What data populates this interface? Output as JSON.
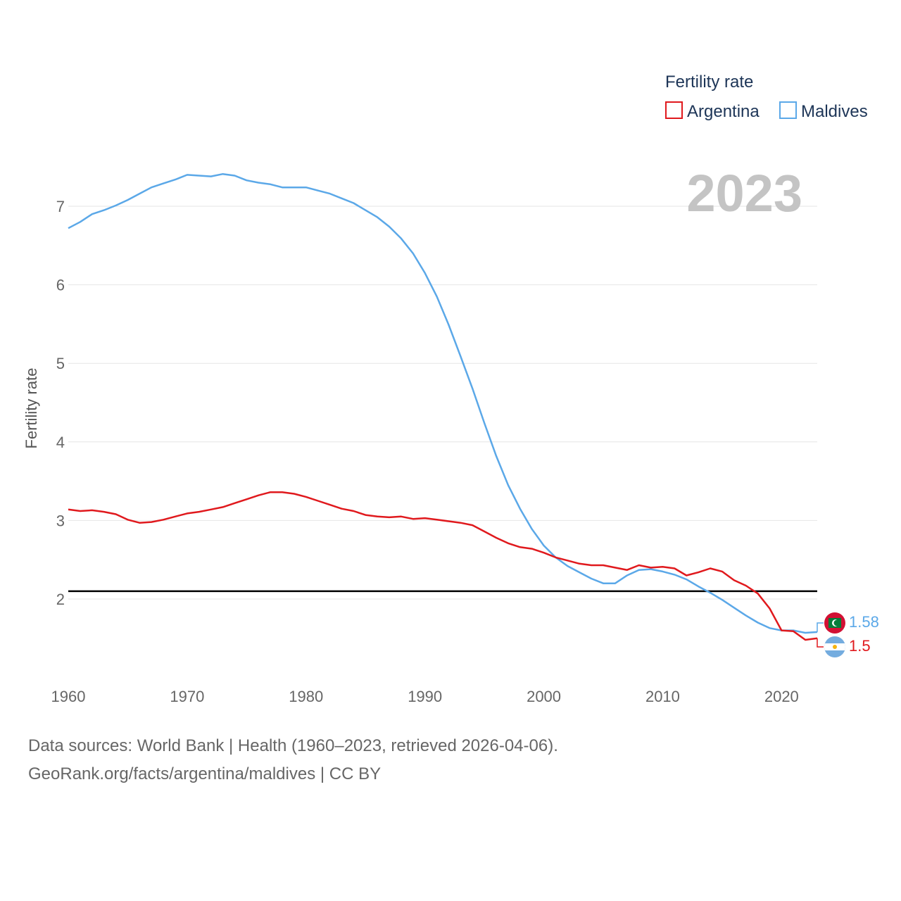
{
  "chart_data": {
    "type": "line",
    "title": "Fertility rate",
    "ylabel": "Fertility rate",
    "xlabel": "",
    "highlight_year": "2023",
    "x_ticks": [
      1960,
      1970,
      1980,
      1990,
      2000,
      2010,
      2020
    ],
    "y_ticks": [
      2,
      3,
      4,
      5,
      6,
      7
    ],
    "xlim": [
      1960,
      2023
    ],
    "ylim": [
      1.2,
      7.6
    ],
    "reference_line": 2.1,
    "grid": true,
    "legend_position": "top-right",
    "x": [
      1960,
      1961,
      1962,
      1963,
      1964,
      1965,
      1966,
      1967,
      1968,
      1969,
      1970,
      1971,
      1972,
      1973,
      1974,
      1975,
      1976,
      1977,
      1978,
      1979,
      1980,
      1981,
      1982,
      1983,
      1984,
      1985,
      1986,
      1987,
      1988,
      1989,
      1990,
      1991,
      1992,
      1993,
      1994,
      1995,
      1996,
      1997,
      1998,
      1999,
      2000,
      2001,
      2002,
      2003,
      2004,
      2005,
      2006,
      2007,
      2008,
      2009,
      2010,
      2011,
      2012,
      2013,
      2014,
      2015,
      2016,
      2017,
      2018,
      2019,
      2020,
      2021,
      2022,
      2023
    ],
    "series": [
      {
        "name": "Argentina",
        "color": "#e0191d",
        "end_label": "1.5",
        "values": [
          3.14,
          3.12,
          3.13,
          3.11,
          3.08,
          3.01,
          2.97,
          2.98,
          3.01,
          3.05,
          3.09,
          3.11,
          3.14,
          3.17,
          3.22,
          3.27,
          3.32,
          3.36,
          3.36,
          3.34,
          3.3,
          3.25,
          3.2,
          3.15,
          3.12,
          3.07,
          3.05,
          3.04,
          3.05,
          3.02,
          3.03,
          3.01,
          2.99,
          2.97,
          2.94,
          2.86,
          2.78,
          2.71,
          2.66,
          2.64,
          2.59,
          2.53,
          2.49,
          2.45,
          2.43,
          2.43,
          2.4,
          2.37,
          2.43,
          2.4,
          2.41,
          2.39,
          2.3,
          2.34,
          2.39,
          2.35,
          2.24,
          2.17,
          2.07,
          1.88,
          1.6,
          1.59,
          1.48,
          1.5
        ]
      },
      {
        "name": "Maldives",
        "color": "#5ba8e8",
        "end_label": "1.58",
        "values": [
          6.72,
          6.8,
          6.9,
          6.95,
          7.01,
          7.08,
          7.16,
          7.24,
          7.29,
          7.34,
          7.4,
          7.39,
          7.38,
          7.41,
          7.39,
          7.33,
          7.3,
          7.28,
          7.24,
          7.24,
          7.24,
          7.2,
          7.16,
          7.1,
          7.04,
          6.95,
          6.86,
          6.74,
          6.59,
          6.4,
          6.15,
          5.85,
          5.49,
          5.09,
          4.68,
          4.24,
          3.82,
          3.45,
          3.15,
          2.89,
          2.68,
          2.53,
          2.42,
          2.34,
          2.26,
          2.2,
          2.2,
          2.3,
          2.37,
          2.38,
          2.35,
          2.31,
          2.25,
          2.16,
          2.08,
          1.99,
          1.89,
          1.79,
          1.7,
          1.63,
          1.6,
          1.6,
          1.57,
          1.58
        ]
      }
    ]
  },
  "legend": {
    "title": "Fertility rate",
    "items": [
      "Argentina",
      "Maldives"
    ]
  },
  "source": {
    "line1": "Data sources: World Bank | Health (1960–2023, retrieved 2026-04-06).",
    "line2": "GeoRank.org/facts/argentina/maldives | CC BY"
  }
}
